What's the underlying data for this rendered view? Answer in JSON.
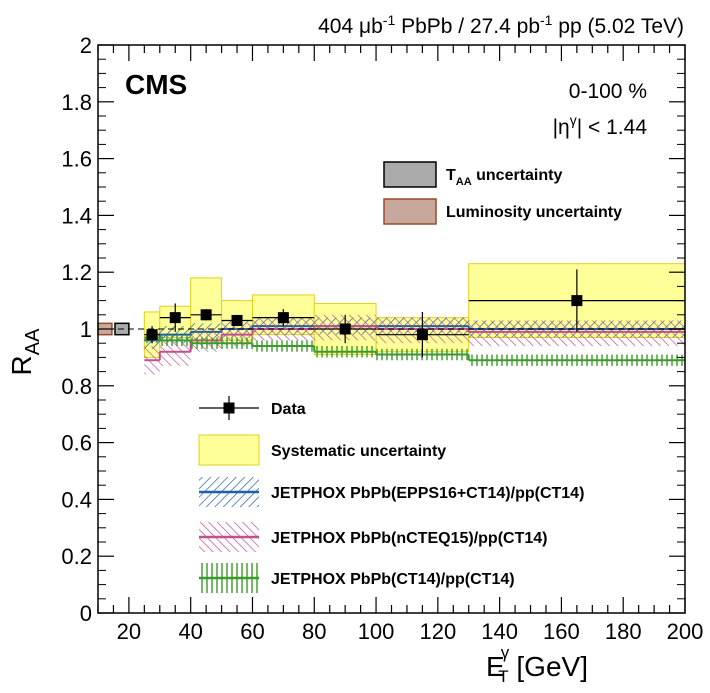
{
  "header": {
    "lumi_pre": "404 ",
    "lumi_mu": "μb",
    "lumi_sup": "-1",
    "lumi_mid": " PbPb / 27.4 pb",
    "lumi_sup2": "-1",
    "lumi_post": " pp (5.02 TeV)",
    "experiment": "CMS",
    "centrality": "0-100 %",
    "eta_cut_pre": "|η",
    "eta_cut_sup": "γ",
    "eta_cut_post": "| < 1.44"
  },
  "colors": {
    "data": "#000000",
    "systematic_fill": "#ffff99",
    "systematic_edge": "#e0d020",
    "epps16": "#1f5fa8",
    "ncteq15": "#c0508f",
    "ct14": "#3a9a2a",
    "taa_fill": "#aaaaaa",
    "lumi_fill": "#c8a89c",
    "lumi_edge": "#9a4a2a"
  },
  "legend_top": [
    {
      "pre": "T",
      "sub": "AA",
      "post": " uncertainty",
      "style": "taa"
    },
    {
      "pre": "Luminosity uncertainty",
      "sub": "",
      "post": "",
      "style": "lumi"
    }
  ],
  "legend_bottom": [
    {
      "label": "Data",
      "style": "data"
    },
    {
      "label": "Systematic uncertainty",
      "style": "syst"
    },
    {
      "label": "JETPHOX PbPb(EPPS16+CT14)/pp(CT14)",
      "style": "epps16"
    },
    {
      "label": "JETPHOX PbPb(nCTEQ15)/pp(CT14)",
      "style": "ncteq15"
    },
    {
      "label": "JETPHOX PbPb(CT14)/pp(CT14)",
      "style": "ct14"
    }
  ],
  "chart_data": {
    "type": "scatter",
    "title": "",
    "xlabel_main": "E",
    "xlabel_sup": "γ",
    "xlabel_sub": "T",
    "xlabel_unit": " [GeV]",
    "ylabel_main": "R",
    "ylabel_sub": "AA",
    "xlim": [
      10,
      200
    ],
    "ylim": [
      0,
      2
    ],
    "xticks": [
      20,
      40,
      60,
      80,
      100,
      120,
      140,
      160,
      180,
      200
    ],
    "yticks": [
      0,
      0.2,
      0.4,
      0.6,
      0.8,
      1,
      1.2,
      1.4,
      1.6,
      1.8,
      2
    ],
    "ytick_labels": [
      "0",
      "0.2",
      "0.4",
      "0.6",
      "0.8",
      "1",
      "1.2",
      "1.4",
      "1.6",
      "1.8",
      "2"
    ],
    "bins": [
      [
        25,
        30
      ],
      [
        30,
        40
      ],
      [
        40,
        50
      ],
      [
        50,
        60
      ],
      [
        60,
        80
      ],
      [
        80,
        100
      ],
      [
        100,
        130
      ],
      [
        130,
        200
      ]
    ],
    "data": {
      "x": [
        27.5,
        35,
        45,
        55,
        70,
        90,
        115,
        165
      ],
      "y": [
        0.98,
        1.04,
        1.05,
        1.03,
        1.04,
        1.0,
        0.98,
        1.1
      ],
      "stat_err": [
        0.03,
        0.05,
        0.02,
        0.02,
        0.03,
        0.05,
        0.08,
        0.11
      ]
    },
    "systematic": {
      "lo": [
        0.9,
        0.97,
        0.95,
        0.96,
        0.98,
        0.91,
        0.92,
        0.97
      ],
      "hi": [
        1.06,
        1.08,
        1.18,
        1.1,
        1.12,
        1.09,
        1.04,
        1.23
      ]
    },
    "theory": [
      {
        "name": "JETPHOX PbPb(EPPS16+CT14)/pp(CT14)",
        "center": [
          0.96,
          0.98,
          0.99,
          1.0,
          1.01,
          1.01,
          1.01,
          1.0
        ],
        "lo": [
          0.93,
          0.95,
          0.96,
          0.97,
          0.98,
          0.98,
          0.98,
          0.97
        ],
        "hi": [
          0.99,
          1.01,
          1.02,
          1.03,
          1.04,
          1.04,
          1.04,
          1.03
        ]
      },
      {
        "name": "JETPHOX PbPb(nCTEQ15)/pp(CT14)",
        "center": [
          0.89,
          0.92,
          0.96,
          0.98,
          1.0,
          1.01,
          1.0,
          0.99
        ],
        "lo": [
          0.84,
          0.87,
          0.92,
          0.94,
          0.96,
          0.96,
          0.95,
          0.94
        ],
        "hi": [
          0.94,
          0.97,
          1.0,
          1.02,
          1.04,
          1.05,
          1.04,
          1.03
        ]
      },
      {
        "name": "JETPHOX PbPb(CT14)/pp(CT14)",
        "center": [
          0.97,
          0.96,
          0.95,
          0.95,
          0.94,
          0.92,
          0.91,
          0.89
        ],
        "lo": [
          0.95,
          0.94,
          0.93,
          0.93,
          0.92,
          0.9,
          0.89,
          0.87
        ],
        "hi": [
          0.99,
          0.98,
          0.97,
          0.97,
          0.96,
          0.94,
          0.93,
          0.91
        ]
      }
    ],
    "global_boxes": [
      {
        "name": "Luminosity uncertainty",
        "lo": 0.98,
        "hi": 1.02
      },
      {
        "name": "TAA uncertainty",
        "lo": 0.98,
        "hi": 1.02
      }
    ],
    "reference_line": 1,
    "grid": false,
    "legend_position": "bottom"
  }
}
